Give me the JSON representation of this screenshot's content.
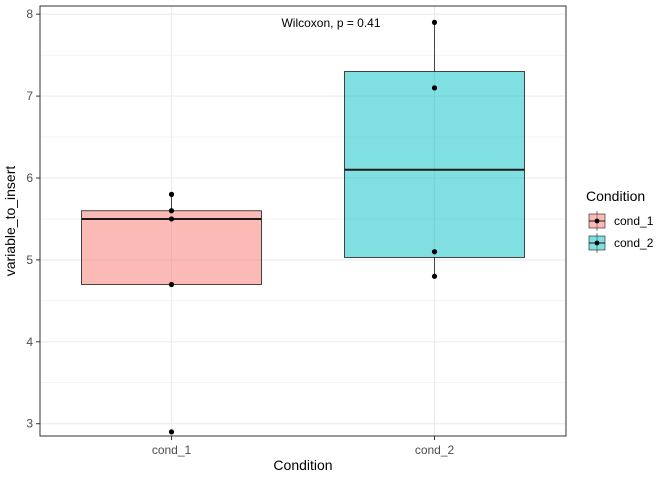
{
  "chart_data": {
    "type": "box",
    "annotation": "Wilcoxon, p = 0.41",
    "xlabel": "Condition",
    "ylabel": "variable_to_insert",
    "ylim": [
      2.85,
      8.1
    ],
    "yticks": [
      3,
      4,
      5,
      6,
      7,
      8
    ],
    "grid": true,
    "legend": {
      "title": "Condition",
      "position": "right",
      "entries": [
        "cond_1",
        "cond_2"
      ]
    },
    "categories": [
      "cond_1",
      "cond_2"
    ],
    "boxes": [
      {
        "name": "cond_1",
        "q1": 4.7,
        "median": 5.5,
        "q3": 5.6,
        "whisker_low": 4.7,
        "whisker_high": 5.8,
        "color": "#F8766D",
        "points": [
          5.8,
          5.6,
          5.5,
          4.7,
          2.9
        ]
      },
      {
        "name": "cond_2",
        "q1": 5.03,
        "median": 6.1,
        "q3": 7.3,
        "whisker_low": 4.8,
        "whisker_high": 7.9,
        "color": "#00BFC4",
        "points": [
          7.9,
          7.1,
          5.1,
          4.8
        ]
      }
    ]
  }
}
